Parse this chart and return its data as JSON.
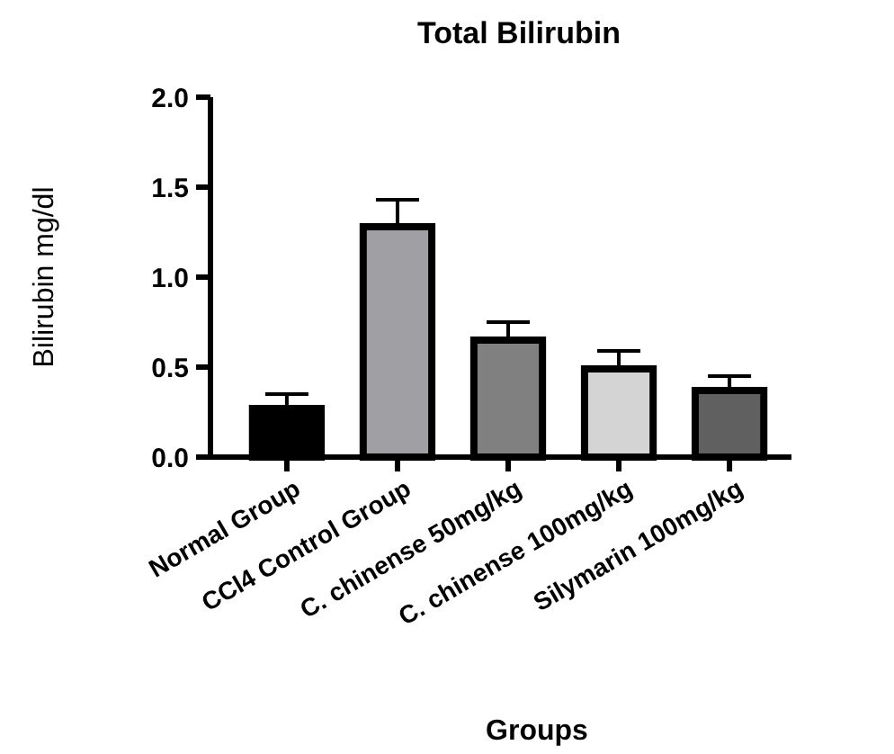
{
  "chart_data": {
    "type": "bar",
    "title": "Total Bilirubin",
    "xlabel": "Groups",
    "ylabel": "Bilirubin mg/dl",
    "categories": [
      "Normal Group",
      "CCl4 Control Group",
      "C. chinense 50mg/kg",
      "C. chinense 100mg/kg",
      "Silymarin 100mg/kg"
    ],
    "values": [
      0.27,
      1.28,
      0.65,
      0.49,
      0.37
    ],
    "colors": [
      "#000000",
      "#a0a0a4",
      "#808080",
      "#d4d4d4",
      "#606060"
    ],
    "errors": [
      0.08,
      0.15,
      0.1,
      0.1,
      0.08
    ],
    "ylim": [
      0,
      2
    ],
    "yticks": [
      {
        "value": 0,
        "label": "0.0"
      },
      {
        "value": 0.5,
        "label": "0.5"
      },
      {
        "value": 1,
        "label": "1.0"
      },
      {
        "value": 1.5,
        "label": "1.5"
      },
      {
        "value": 2,
        "label": "2.0"
      }
    ],
    "grid": false
  }
}
